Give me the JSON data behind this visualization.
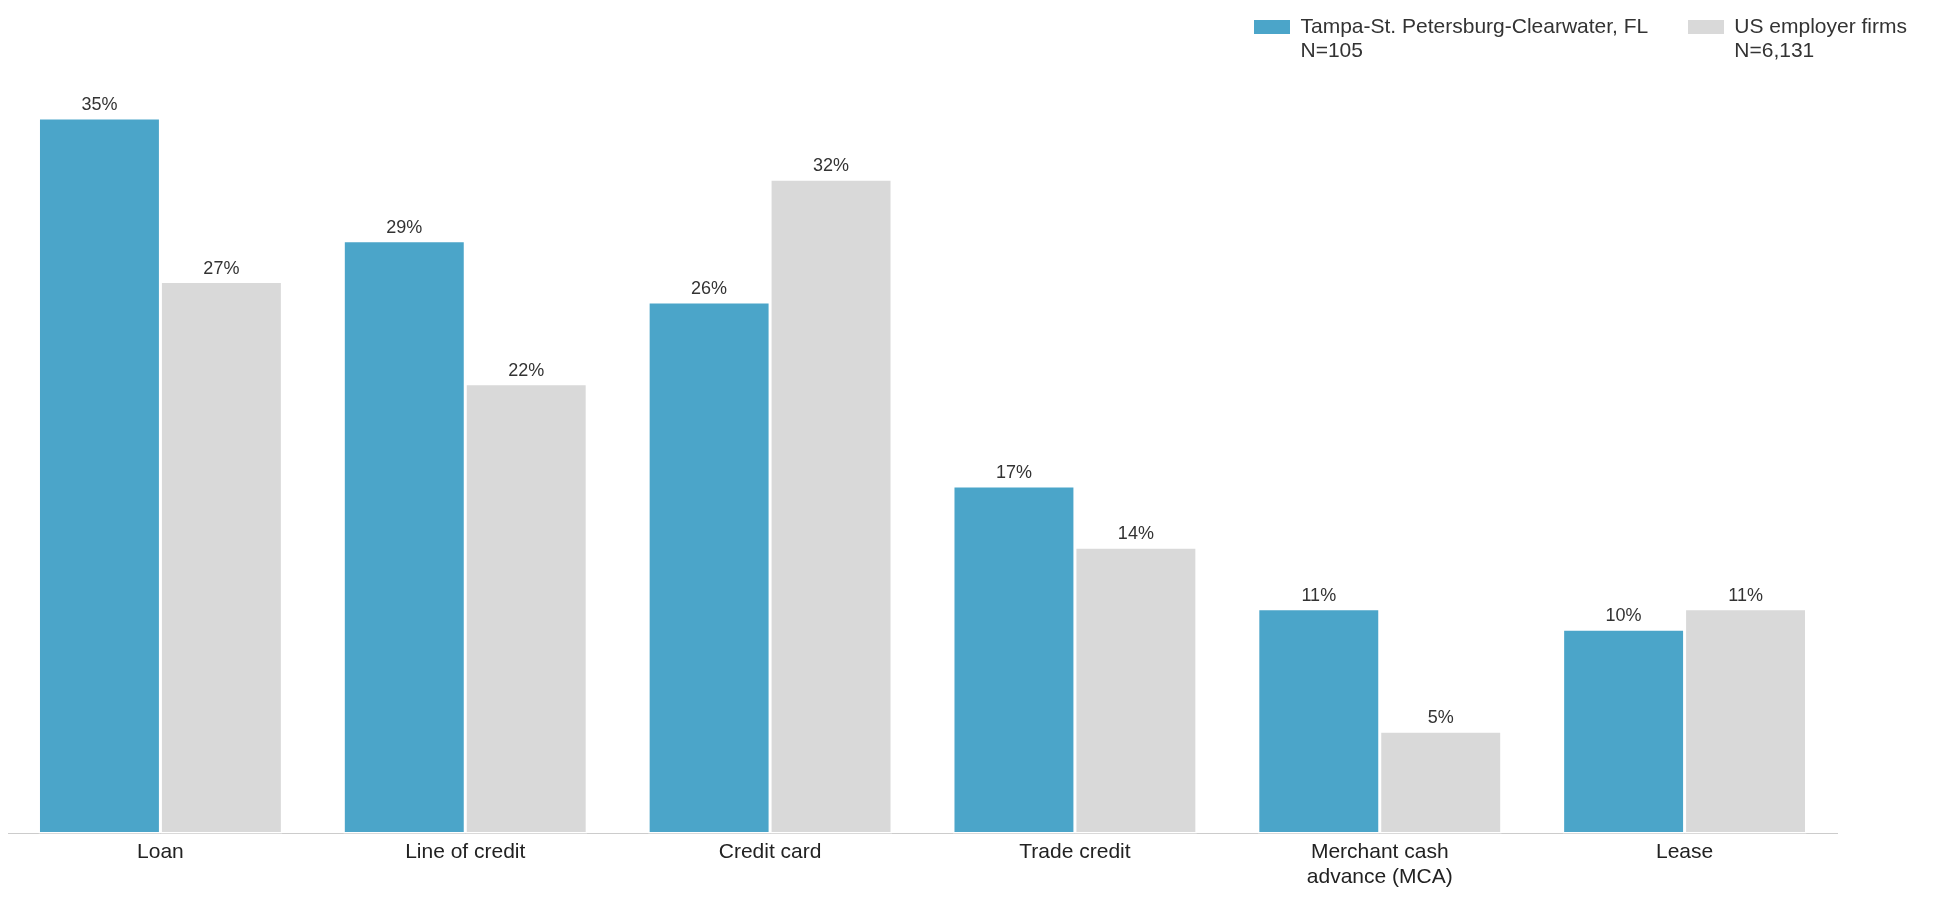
{
  "chart_data": {
    "type": "bar",
    "relative": false,
    "categories": [
      "Loan",
      "Line of credit",
      "Credit card",
      "Trade credit",
      "Merchant cash advance (MCA)",
      "Lease"
    ],
    "series": [
      {
        "name": "Tampa-St. Petersburg-Clearwater, FL\nN=105",
        "color": "#4ba5c9",
        "values": [
          35,
          29,
          26,
          17,
          11,
          10
        ],
        "value_labels": [
          "35%",
          "29%",
          "26%",
          "17%",
          "11%",
          "10%"
        ]
      },
      {
        "name": "US employer firms\nN=6,131",
        "color": "#d9d9d9",
        "values": [
          27,
          22,
          32,
          14,
          5,
          11
        ],
        "value_labels": [
          "27%",
          "22%",
          "32%",
          "14%",
          "5%",
          "11%"
        ]
      }
    ],
    "legend": "top right",
    "grid": false
  }
}
